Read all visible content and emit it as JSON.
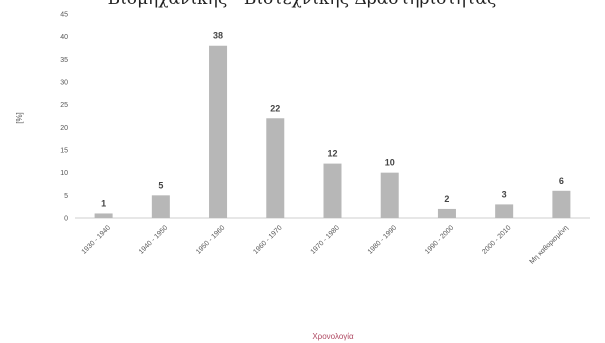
{
  "chart_data": {
    "type": "bar",
    "title": "Βιομηχανικής - Βιοτεχνικής Δραστηριότητας",
    "xlabel": "Χρονολογία",
    "ylabel": "[%]",
    "ylim": [
      0,
      45
    ],
    "yticks": [
      "0",
      "5",
      "10",
      "15",
      "20",
      "25",
      "30",
      "35",
      "40",
      "45"
    ],
    "grid": false,
    "categories": [
      "1930 - 1940",
      "1940 - 1950",
      "1950 - 1960",
      "1960 - 1970",
      "1970 - 1980",
      "1980 - 1990",
      "1990 - 2000",
      "2000 - 2010",
      "Μη καθορισμένη"
    ],
    "values": [
      1,
      5,
      38,
      22,
      12,
      10,
      2,
      3,
      6
    ],
    "data_labels": [
      "1",
      "5",
      "38",
      "22",
      "12",
      "10",
      "2",
      "3",
      "6"
    ],
    "bar_color": "#b7b7b7"
  }
}
